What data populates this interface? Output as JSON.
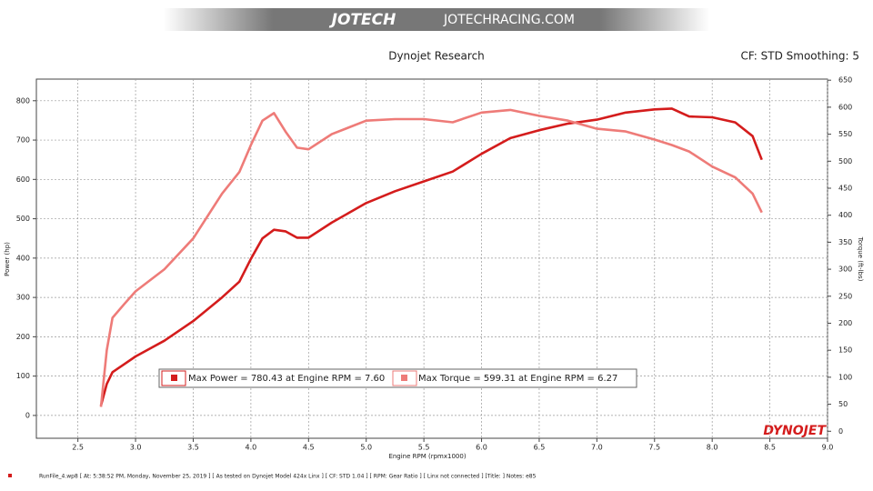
{
  "chart_data": {
    "type": "line",
    "banner_logo": "JOTECH",
    "banner_site": "JOTECHRACING.COM",
    "title": "Dynojet Research",
    "subtitle": "CF: STD Smoothing: 5",
    "x_label": "Engine RPM (rpmx1000)",
    "y_label": "Power (hp)",
    "y2_label": "Torque (ft-lbs)",
    "brand": "DYNOJET",
    "footer": "RunFile_4.wp8  [ At:  5:38:52 PM, Monday, November 25, 2019 ]  [ As tested on Dynojet Model 424x Linx ]  [ CF: STD 1.04 ]  [ RPM: Gear Ratio ]  [ Linx not connected ]  [Title: ]   Notes: e85",
    "annotations": [
      "Max Power = 780.43 at Engine RPM = 7.60",
      "Max Torque = 599.31 at Engine RPM = 6.27"
    ],
    "x": [
      2.7,
      2.75,
      2.8,
      2.9,
      3.0,
      3.25,
      3.5,
      3.75,
      3.9,
      4.0,
      4.1,
      4.2,
      4.3,
      4.4,
      4.5,
      4.7,
      5.0,
      5.25,
      5.5,
      5.75,
      6.0,
      6.25,
      6.5,
      6.75,
      7.0,
      7.25,
      7.5,
      7.65,
      7.8,
      8.0,
      8.2,
      8.35,
      8.43
    ],
    "series": [
      {
        "name": "Power",
        "color": "#d41c1c",
        "axis": "y",
        "values": [
          25,
          80,
          110,
          130,
          150,
          190,
          240,
          300,
          340,
          398,
          450,
          472,
          468,
          452,
          452,
          490,
          540,
          570,
          595,
          620,
          665,
          705,
          725,
          742,
          752,
          770,
          778,
          780,
          760,
          758,
          745,
          710,
          650
        ]
      },
      {
        "name": "Torque",
        "color": "#ee7b78",
        "axis": "y2",
        "values": [
          45,
          150,
          210,
          235,
          259,
          300,
          357,
          440,
          480,
          530,
          575,
          589,
          555,
          525,
          522,
          550,
          575,
          578,
          578,
          572,
          590,
          595,
          584,
          575,
          560,
          555,
          540,
          530,
          518,
          490,
          470,
          440,
          405
        ]
      }
    ],
    "xlim": [
      2.14,
      9.0
    ],
    "xticks": [
      2.5,
      {
        "value": 3,
        "label": "3.0"
      },
      3.5,
      {
        "value": 4,
        "label": "4.0"
      },
      4.5,
      {
        "value": 5,
        "label": "5.0"
      },
      5.5,
      {
        "value": 6,
        "label": "6.0"
      },
      6.5,
      {
        "value": 7,
        "label": "7.0"
      },
      7.5,
      {
        "value": 8,
        "label": "8.0"
      },
      8.5,
      {
        "value": 9,
        "label": "9.0"
      }
    ],
    "ylim": [
      -58,
      855
    ],
    "yticks": [
      0,
      100,
      200,
      300,
      400,
      500,
      600,
      700,
      800
    ],
    "y2lim": [
      -13,
      652
    ],
    "y2ticks": [
      0,
      50,
      100,
      150,
      200,
      250,
      300,
      350,
      400,
      450,
      500,
      550,
      600,
      650
    ],
    "grid": true
  }
}
